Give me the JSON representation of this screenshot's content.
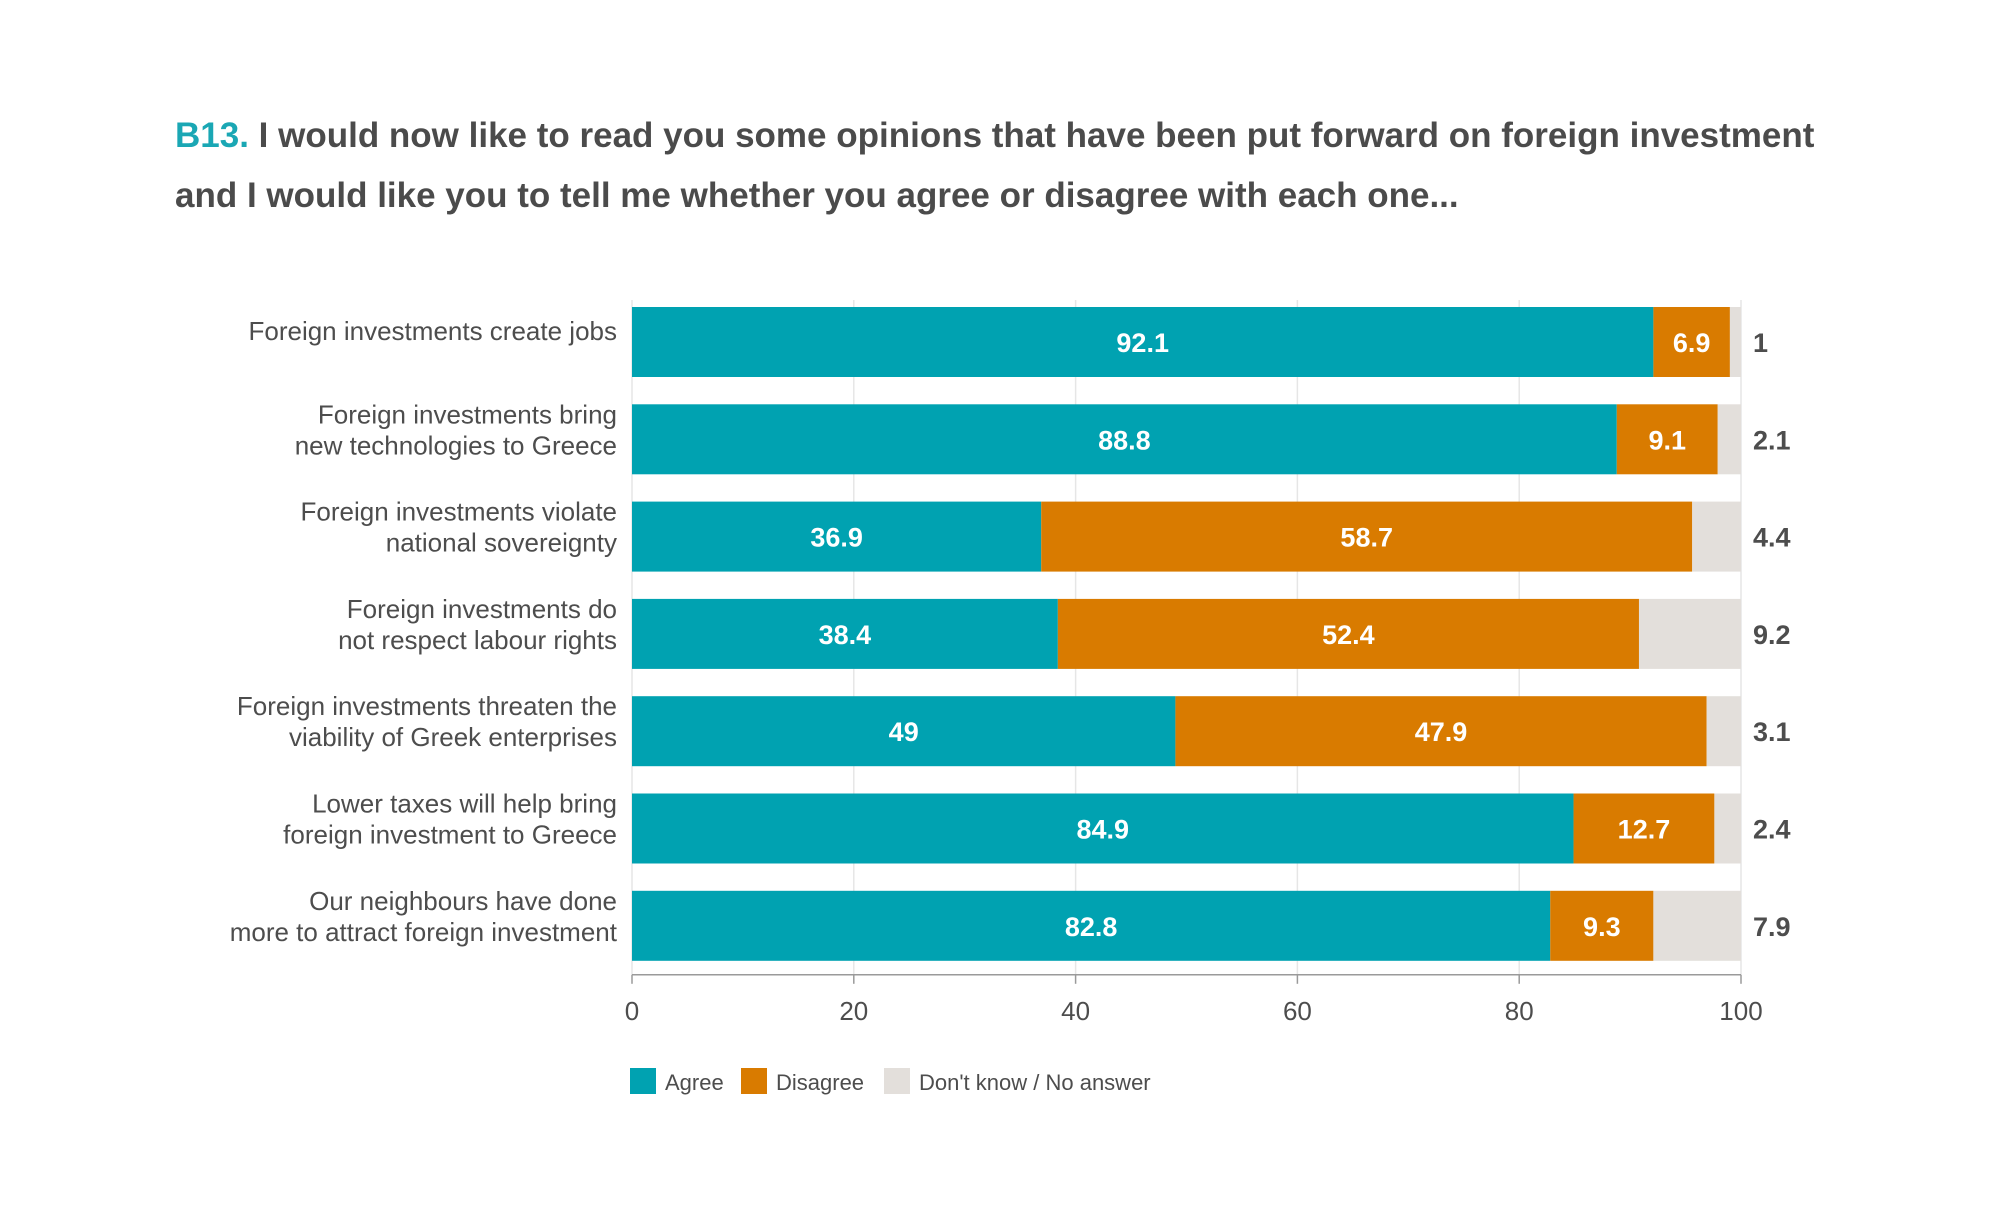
{
  "title": {
    "qid": "B13.",
    "text": " I would now like to read you some opinions that have been put forward on foreign investment and I would like you to tell me whether you agree or disagree with each one..."
  },
  "colors": {
    "agree": "#00a2b1",
    "disagree": "#d97b00",
    "dontknow": "#e3dfdb"
  },
  "chart_data": {
    "type": "bar",
    "orientation": "horizontal",
    "stacked": true,
    "categories": [
      [
        "Foreign investments create jobs"
      ],
      [
        "Foreign investments bring",
        "new technologies to Greece"
      ],
      [
        "Foreign investments violate",
        "national sovereignty"
      ],
      [
        "Foreign investments do",
        "not respect labour rights"
      ],
      [
        "Foreign investments threaten the",
        "viability of Greek enterprises"
      ],
      [
        "Lower taxes will help bring",
        "foreign investment to Greece"
      ],
      [
        "Our neighbours have done",
        "more to attract foreign investment"
      ]
    ],
    "series": [
      {
        "name": "Agree",
        "values": [
          92.1,
          88.8,
          36.9,
          38.4,
          49,
          84.9,
          82.8
        ]
      },
      {
        "name": "Disagree",
        "values": [
          6.9,
          9.1,
          58.7,
          52.4,
          47.9,
          12.7,
          9.3
        ]
      },
      {
        "name": "Don't know / No answer",
        "values": [
          1,
          2.1,
          4.4,
          9.2,
          3.1,
          2.4,
          7.9
        ]
      }
    ],
    "xlim": [
      0,
      100
    ],
    "xticks": [
      0,
      20,
      40,
      60,
      80,
      100
    ],
    "grid": true,
    "legend": "bottom-left"
  }
}
